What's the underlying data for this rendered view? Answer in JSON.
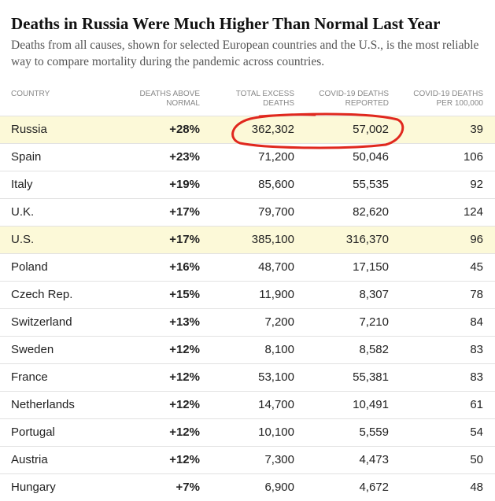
{
  "header": {
    "title": "Deaths in Russia Were Much Higher Than Normal Last Year",
    "subtitle": "Deaths from all causes, shown for selected European countries and the U.S., is the most reliable way to compare mortality during the pandemic across countries."
  },
  "table": {
    "columns": [
      "COUNTRY",
      "DEATHS ABOVE NORMAL",
      "TOTAL EXCESS DEATHS",
      "COVID-19 DEATHS REPORTED",
      "COVID-19 DEATHS PER 100,000"
    ],
    "rows": [
      [
        "Russia",
        "+28%",
        "362,302",
        "57,002",
        "39"
      ],
      [
        "Spain",
        "+23%",
        "71,200",
        "50,046",
        "106"
      ],
      [
        "Italy",
        "+19%",
        "85,600",
        "55,535",
        "92"
      ],
      [
        "U.K.",
        "+17%",
        "79,700",
        "82,620",
        "124"
      ],
      [
        "U.S.",
        "+17%",
        "385,100",
        "316,370",
        "96"
      ],
      [
        "Poland",
        "+16%",
        "48,700",
        "17,150",
        "45"
      ],
      [
        "Czech Rep.",
        "+15%",
        "11,900",
        "8,307",
        "78"
      ],
      [
        "Switzerland",
        "+13%",
        "7,200",
        "7,210",
        "84"
      ],
      [
        "Sweden",
        "+12%",
        "8,100",
        "8,582",
        "83"
      ],
      [
        "France",
        "+12%",
        "53,100",
        "55,381",
        "83"
      ],
      [
        "Netherlands",
        "+12%",
        "14,700",
        "10,491",
        "61"
      ],
      [
        "Portugal",
        "+12%",
        "10,100",
        "5,559",
        "54"
      ],
      [
        "Austria",
        "+12%",
        "7,300",
        "4,473",
        "50"
      ],
      [
        "Hungary",
        "+7%",
        "6,900",
        "4,672",
        "48"
      ]
    ]
  }
}
